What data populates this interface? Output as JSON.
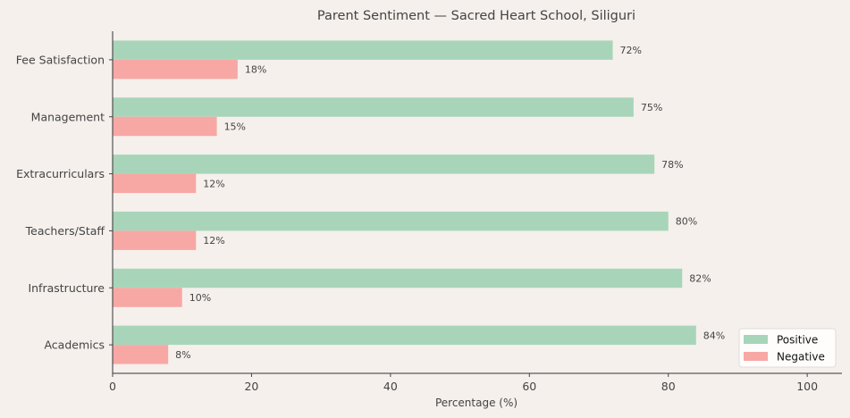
{
  "chart_data": {
    "type": "bar",
    "orientation": "horizontal",
    "title": "Parent Sentiment — Sacred Heart School, Siliguri",
    "xlabel": "Percentage (%)",
    "ylabel": "",
    "xlim": [
      0,
      105
    ],
    "xticks": [
      0,
      20,
      40,
      60,
      80,
      100
    ],
    "categories": [
      "Academics",
      "Infrastructure",
      "Teachers/Staff",
      "Extracurriculars",
      "Management",
      "Fee Satisfaction"
    ],
    "series": [
      {
        "name": "Positive",
        "color": "#a8d5ba",
        "values": [
          84,
          82,
          80,
          78,
          75,
          72
        ]
      },
      {
        "name": "Negative",
        "color": "#f7a8a4",
        "values": [
          8,
          10,
          12,
          12,
          15,
          18
        ]
      }
    ],
    "value_suffix": "%",
    "grid": false,
    "legend_position": "lower-right"
  }
}
